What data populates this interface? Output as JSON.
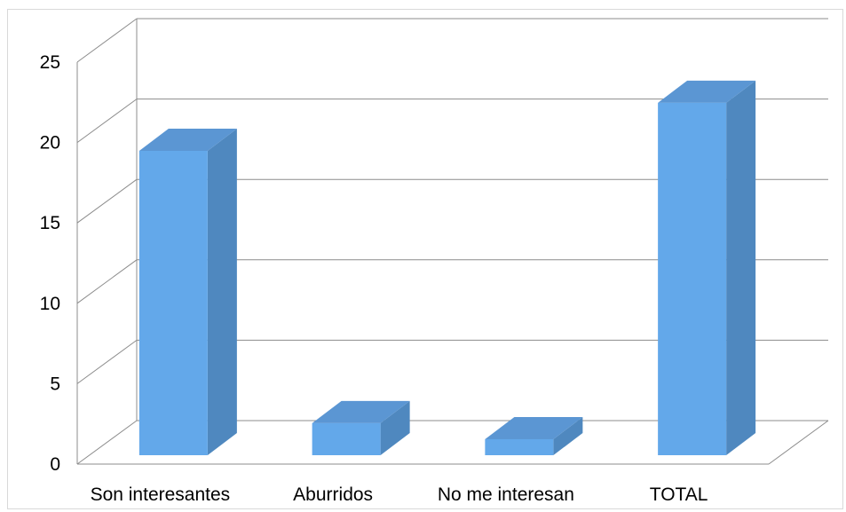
{
  "chart_data": {
    "type": "bar",
    "categories": [
      "Son interesantes",
      "Aburridos",
      "No me interesan",
      "TOTAL"
    ],
    "values": [
      19,
      2,
      1,
      22
    ],
    "ylim": [
      0,
      25
    ],
    "yticks": [
      0,
      5,
      10,
      15,
      20,
      25
    ],
    "grid": true,
    "colors": {
      "front": "#63a8ea",
      "side": "#4f88bf",
      "top": "#5b96d3"
    }
  }
}
